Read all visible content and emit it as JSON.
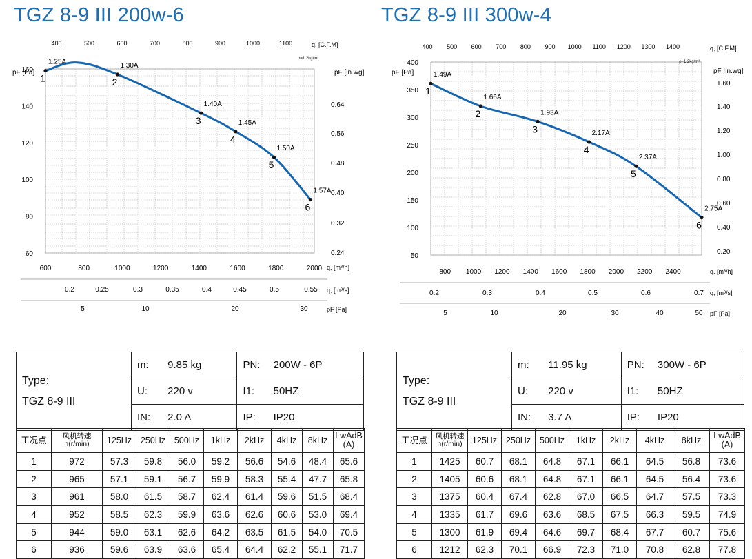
{
  "charts": [
    {
      "title_brand": "TGZ",
      "title_rest": " 8-9 III 200w-6",
      "density_note": "ρ=1.2kg/m³",
      "top_axis_label": "q, [C.F.M]",
      "top_ticks": [
        "400",
        "500",
        "600",
        "700",
        "800",
        "900",
        "1000",
        "1100"
      ],
      "left_axis_label": "pF [Pa]",
      "right_axis_label": "pF [in.wg]",
      "right_ticks": [
        "0.64",
        "0.56",
        "0.48",
        "0.40",
        "0.32",
        "0.24"
      ],
      "m3h_label": "q, [m³/h]",
      "ms_label": "q, [m³/s]",
      "ms_ticks": [
        "0.2",
        "0.25",
        "0.3",
        "0.35",
        "0.4",
        "0.45",
        "0.5",
        "0.55"
      ],
      "pa2_label": "pF [Pa]",
      "pa2_ticks": [
        "5",
        "10",
        "20",
        "30"
      ]
    },
    {
      "title_brand": "TGZ",
      "title_rest": " 8-9 III 300w-4",
      "density_note": "ρ=1.2kg/m³",
      "top_axis_label": "q, [C.F.M]",
      "top_ticks": [
        "400",
        "500",
        "600",
        "700",
        "800",
        "900",
        "1000",
        "1100",
        "1200",
        "1300",
        "1400"
      ],
      "left_axis_label": "pF [Pa]",
      "right_axis_label": "pF [in.wg]",
      "right_ticks": [
        "1.60",
        "1.40",
        "1.20",
        "1.00",
        "0.80",
        "0.60",
        "0.40",
        "0.20"
      ],
      "m3h_label": "q, [m³/h]",
      "ms_label": "q, [m³/s]",
      "ms_ticks": [
        "0.2",
        "0.3",
        "0.4",
        "0.5",
        "0.6",
        "0.7"
      ],
      "pa2_label": "pF [Pa]",
      "pa2_ticks": [
        "5",
        "10",
        "20",
        "30",
        "40",
        "50"
      ]
    }
  ],
  "chart_data": [
    {
      "type": "line",
      "title": "TGZ 8-9 III 200w-6",
      "xlabel": "q, [m³/h]",
      "ylabel": "pF [Pa]",
      "xlim": [
        600,
        2000
      ],
      "ylim": [
        60,
        160
      ],
      "x_ticks": [
        600,
        800,
        1000,
        1200,
        1400,
        1600,
        1800,
        2000
      ],
      "y_ticks": [
        60,
        80,
        100,
        120,
        140,
        160
      ],
      "points": [
        {
          "label": "1",
          "current": "1.25A",
          "x": 600,
          "y": 159
        },
        {
          "label": "2",
          "current": "1.30A",
          "x": 975,
          "y": 157
        },
        {
          "label": "3",
          "current": "1.40A",
          "x": 1410,
          "y": 136
        },
        {
          "label": "4",
          "current": "1.45A",
          "x": 1590,
          "y": 126
        },
        {
          "label": "5",
          "current": "1.50A",
          "x": 1790,
          "y": 112
        },
        {
          "label": "6",
          "current": "1.57A",
          "x": 1980,
          "y": 89
        }
      ]
    },
    {
      "type": "line",
      "title": "TGZ 8-9 III 300w-4",
      "xlabel": "q, [m³/h]",
      "ylabel": "pF [Pa]",
      "xlim": [
        700,
        2600
      ],
      "ylim": [
        50,
        400
      ],
      "x_ticks": [
        800,
        1000,
        1200,
        1400,
        1600,
        1800,
        2000,
        2200,
        2400
      ],
      "y_ticks": [
        50,
        100,
        150,
        200,
        250,
        300,
        350,
        400
      ],
      "points": [
        {
          "label": "1",
          "current": "1.49A",
          "x": 700,
          "y": 361
        },
        {
          "label": "2",
          "current": "1.66A",
          "x": 1050,
          "y": 320
        },
        {
          "label": "3",
          "current": "1.93A",
          "x": 1450,
          "y": 292
        },
        {
          "label": "4",
          "current": "2.17A",
          "x": 1810,
          "y": 255
        },
        {
          "label": "5",
          "current": "2.37A",
          "x": 2140,
          "y": 211
        },
        {
          "label": "6",
          "current": "2.75A",
          "x": 2600,
          "y": 118
        }
      ]
    }
  ],
  "spec_tables": [
    {
      "type_label": "Type:",
      "type_value": "TGZ 8-9 III",
      "m_label": "m:",
      "m_value": "9.85  kg",
      "pn_label": "PN:",
      "pn_value": "200W - 6P",
      "u_label": "U:",
      "u_value": "220  v",
      "f_label": "f1:",
      "f_value": "50HZ",
      "in_label": "IN:",
      "in_value": "2.0 A",
      "ip_label": "IP:",
      "ip_value": "IP20"
    },
    {
      "type_label": "Type:",
      "type_value": "TGZ 8-9 III",
      "m_label": "m:",
      "m_value": "11.95  kg",
      "pn_label": "PN:",
      "pn_value": "300W - 6P",
      "u_label": "U:",
      "u_value": "220  v",
      "f_label": "f1:",
      "f_value": "50HZ",
      "in_label": "IN:",
      "in_value": "3.7  A",
      "ip_label": "IP:",
      "ip_value": "IP20"
    }
  ],
  "perf_headers": [
    "工况点",
    "风机转速 n(r/min)",
    "125Hz",
    "250Hz",
    "500Hz",
    "1kHz",
    "2kHz",
    "4kHz",
    "8kHz",
    "LwAdB (A)"
  ],
  "perf_tables": [
    [
      [
        "1",
        "972",
        "57.3",
        "59.8",
        "56.0",
        "59.2",
        "56.6",
        "54.6",
        "48.4",
        "65.6"
      ],
      [
        "2",
        "965",
        "57.1",
        "59.1",
        "56.7",
        "59.9",
        "58.3",
        "55.4",
        "47.7",
        "65.8"
      ],
      [
        "3",
        "961",
        "58.0",
        "61.5",
        "58.7",
        "62.4",
        "61.4",
        "59.6",
        "51.5",
        "68.4"
      ],
      [
        "4",
        "952",
        "58.5",
        "62.3",
        "59.9",
        "63.6",
        "62.6",
        "60.6",
        "53.0",
        "69.4"
      ],
      [
        "5",
        "944",
        "59.0",
        "63.1",
        "62.6",
        "64.2",
        "63.5",
        "61.5",
        "54.0",
        "70.5"
      ],
      [
        "6",
        "936",
        "59.6",
        "63.9",
        "63.6",
        "65.4",
        "64.4",
        "62.2",
        "55.1",
        "71.7"
      ]
    ],
    [
      [
        "1",
        "1425",
        "60.7",
        "68.1",
        "64.8",
        "67.1",
        "66.1",
        "64.5",
        "56.8",
        "73.6"
      ],
      [
        "2",
        "1405",
        "60.6",
        "68.1",
        "64.8",
        "67.1",
        "66.1",
        "64.5",
        "56.4",
        "73.6"
      ],
      [
        "3",
        "1375",
        "60.4",
        "67.4",
        "62.8",
        "67.0",
        "66.5",
        "64.7",
        "57.5",
        "73.3"
      ],
      [
        "4",
        "1335",
        "61.7",
        "69.6",
        "63.6",
        "68.5",
        "67.5",
        "66.3",
        "59.5",
        "74.9"
      ],
      [
        "5",
        "1300",
        "61.9",
        "69.4",
        "64.6",
        "69.7",
        "68.4",
        "67.7",
        "60.7",
        "75.6"
      ],
      [
        "6",
        "1212",
        "62.3",
        "70.1",
        "66.9",
        "72.3",
        "71.0",
        "70.8",
        "62.8",
        "77.8"
      ]
    ]
  ],
  "colors": {
    "title": "#1e6fb8",
    "curve": "#1666b0",
    "grid": "#9a9a9a",
    "text": "#111111"
  }
}
